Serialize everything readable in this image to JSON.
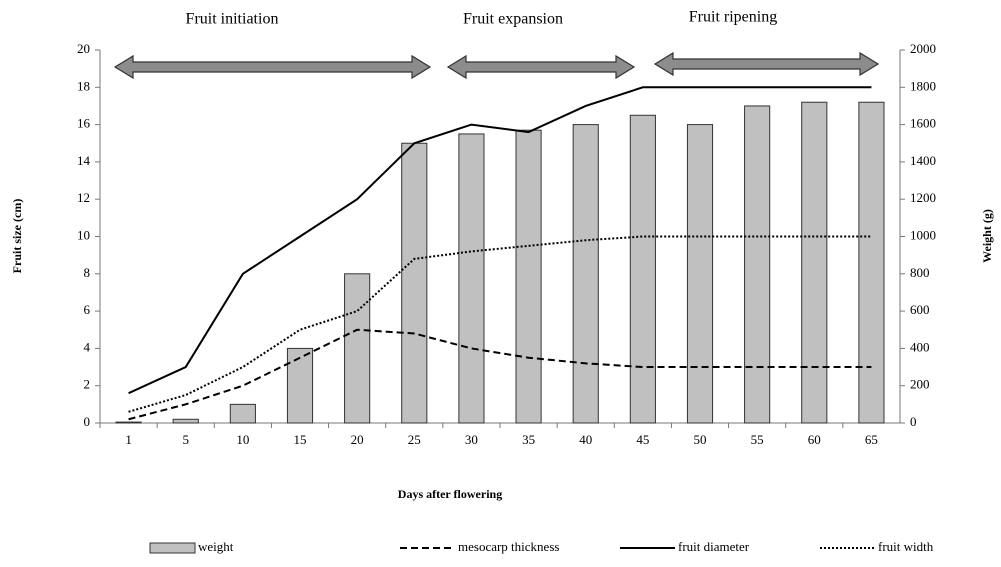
{
  "chart_data": {
    "type": "bar-line",
    "annotations": [
      "Fruit initiation",
      "Fruit expansion",
      "Fruit ripening"
    ],
    "xlabel": "Days after flowering",
    "ylabel": "Fruit size (cm)",
    "y2label": "Weight (g)",
    "categories": [
      "1",
      "5",
      "10",
      "15",
      "20",
      "25",
      "30",
      "35",
      "40",
      "45",
      "50",
      "55",
      "60",
      "65"
    ],
    "series": [
      {
        "name": "weight",
        "type": "bar",
        "axis": "y2",
        "color": "#c0c0c0",
        "values": [
          5,
          20,
          100,
          400,
          800,
          1500,
          1550,
          1570,
          1600,
          1650,
          1600,
          1700,
          1720,
          1720
        ]
      },
      {
        "name": "mesocarp thickness",
        "type": "line",
        "dash": "dashed",
        "color": "#000000",
        "values": [
          0.2,
          1,
          2,
          3.5,
          5,
          4.8,
          4,
          3.5,
          3.2,
          3,
          3,
          3,
          3,
          3
        ]
      },
      {
        "name": "fruit diameter",
        "type": "line",
        "dash": "solid",
        "color": "#000000",
        "values": [
          1.6,
          3,
          8,
          10,
          12,
          15,
          16,
          15.6,
          17,
          18,
          18,
          18,
          18,
          18
        ]
      },
      {
        "name": "fruit width",
        "type": "line",
        "dash": "dotted",
        "color": "#000000",
        "values": [
          0.6,
          1.5,
          3,
          5,
          6,
          8.8,
          9.2,
          9.5,
          9.8,
          10,
          10,
          10,
          10,
          10
        ]
      }
    ],
    "ylim": [
      0,
      20
    ],
    "yticks": [
      0,
      2,
      4,
      6,
      8,
      10,
      12,
      14,
      16,
      18,
      20
    ],
    "y2lim": [
      0,
      2000
    ],
    "y2ticks": [
      0,
      200,
      400,
      600,
      800,
      1000,
      1200,
      1400,
      1600,
      1800,
      2000
    ],
    "grid": false
  }
}
